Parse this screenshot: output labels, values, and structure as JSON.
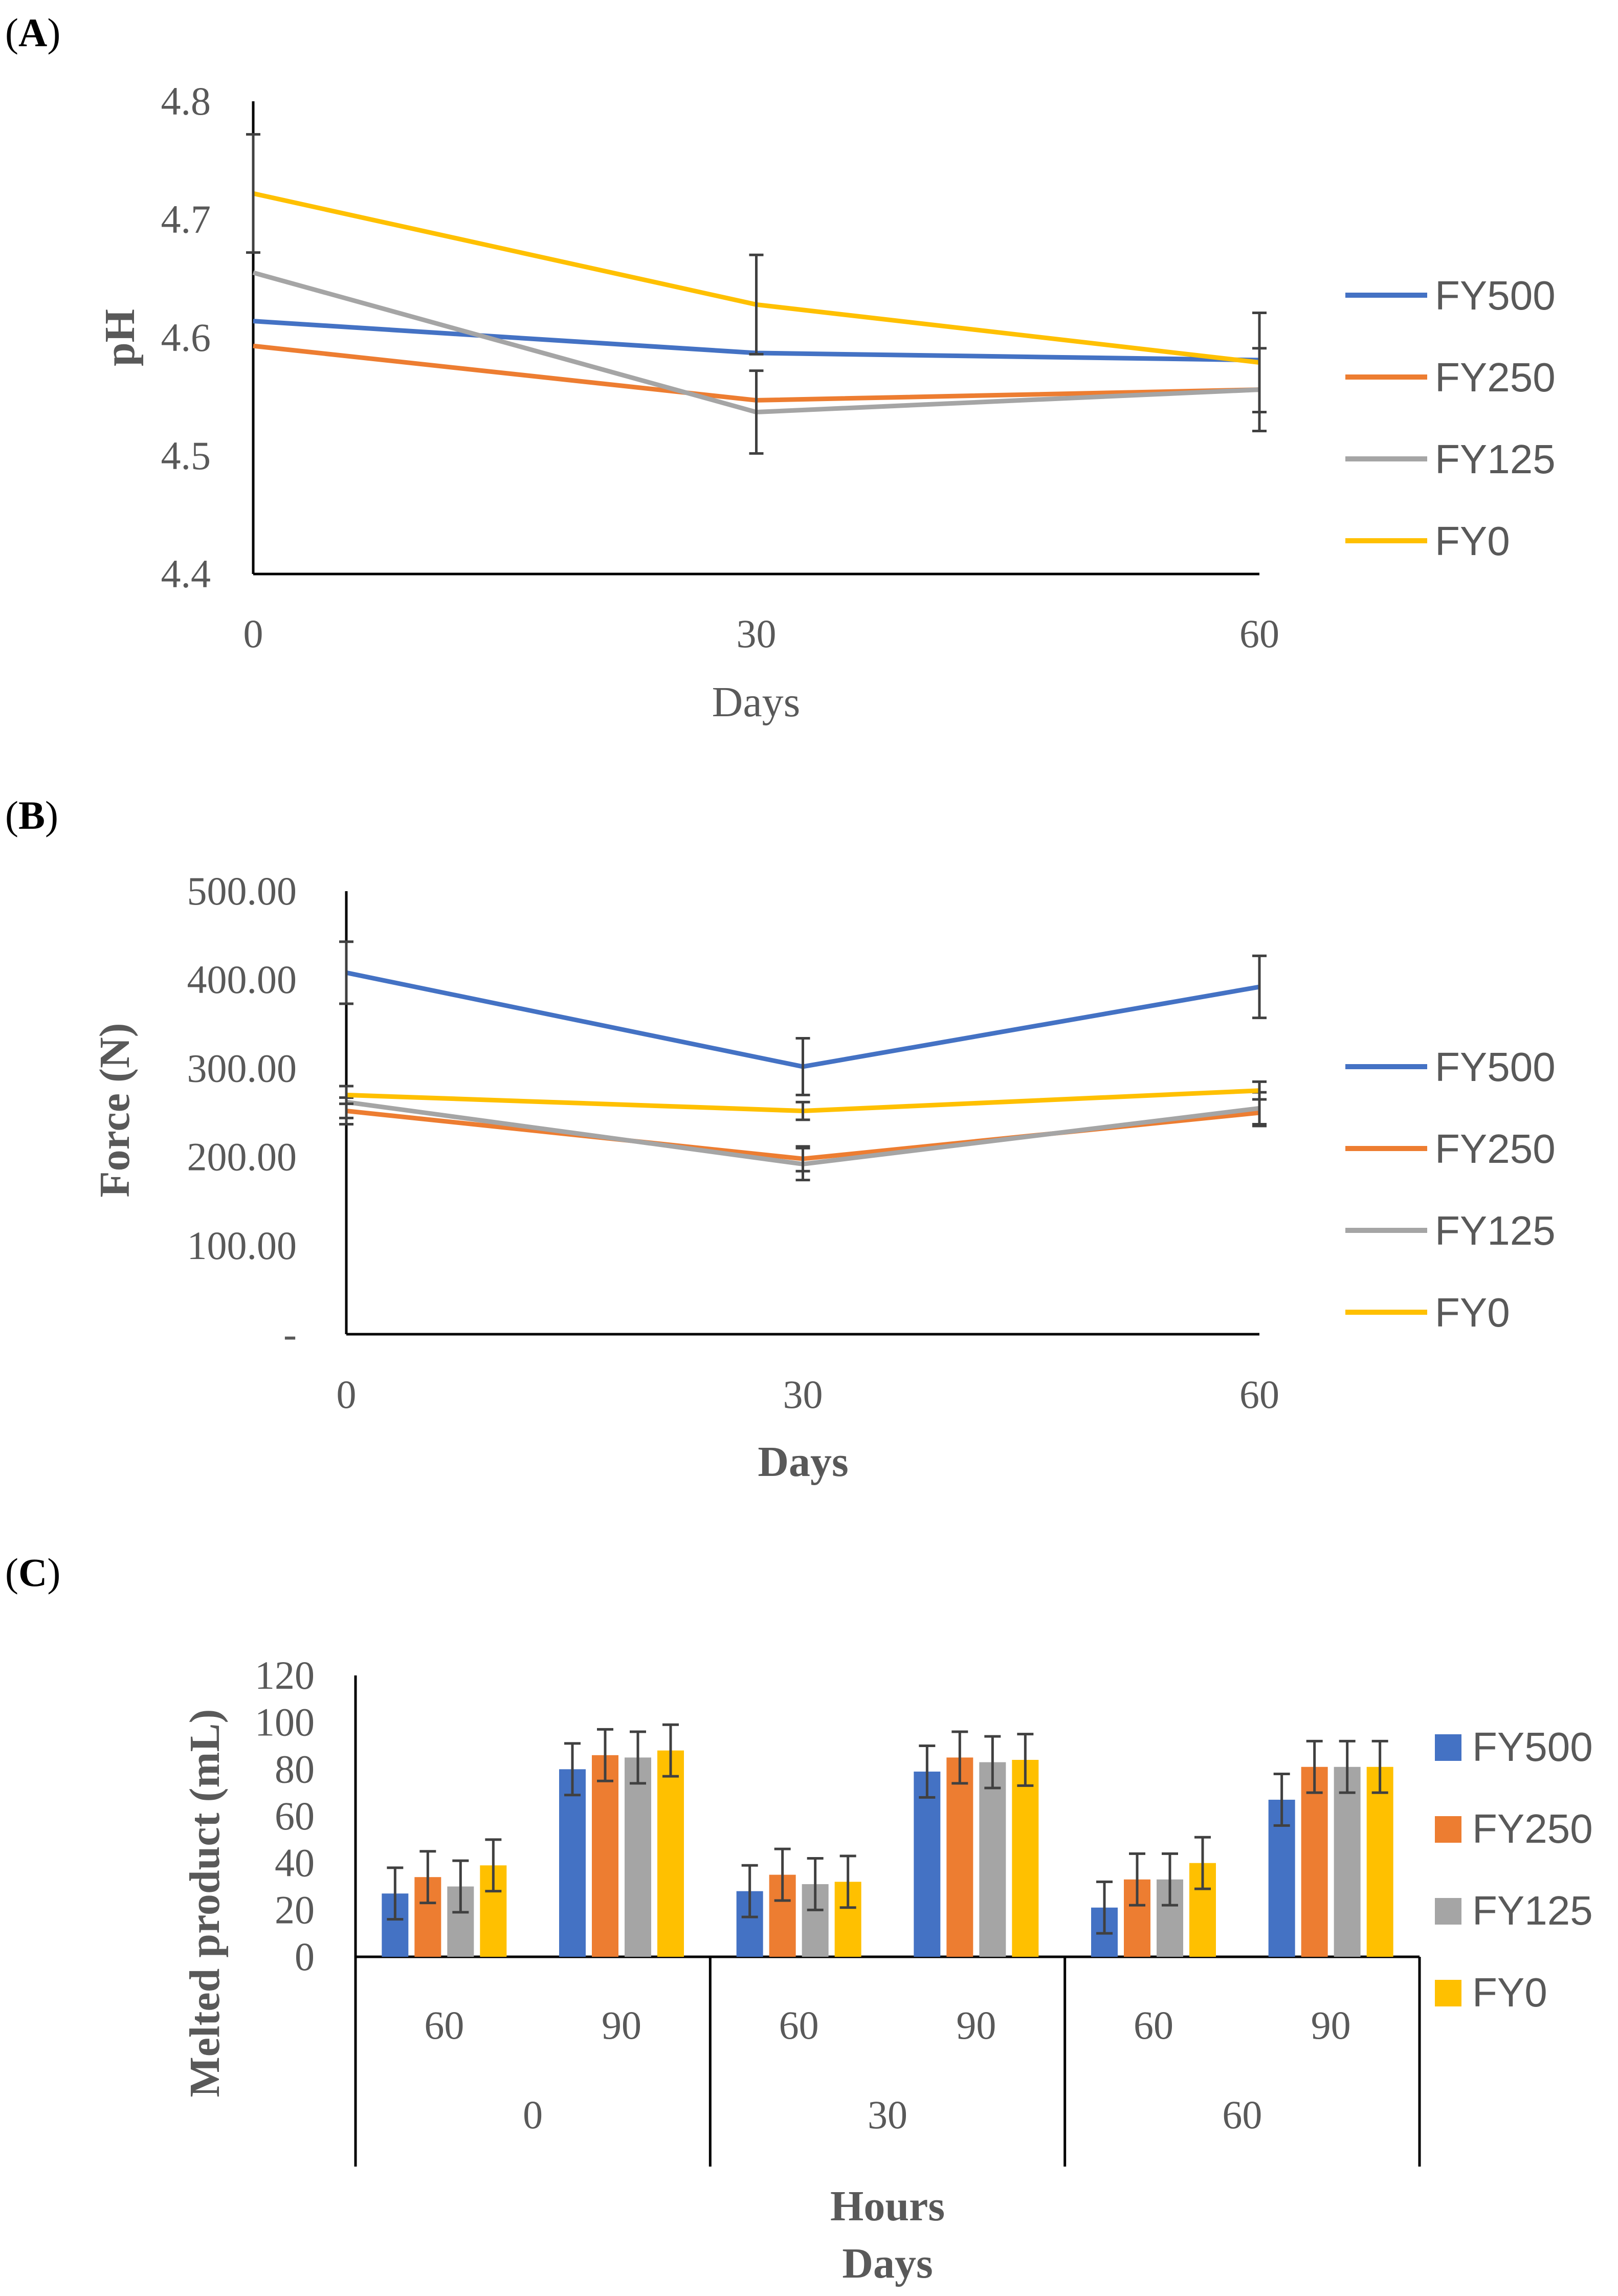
{
  "colors": {
    "FY500": "#4472C4",
    "FY250": "#ED7D31",
    "FY125": "#A5A5A5",
    "FY0": "#FFC000",
    "axis": "#000000",
    "errorbar": "#404040"
  },
  "chart_data": [
    {
      "panel": "(A)",
      "panel_letter": "A",
      "type": "line",
      "x": [
        0,
        30,
        60
      ],
      "x_ticks": [
        "0",
        "30",
        "60"
      ],
      "xlabel": "Days",
      "ylabel": "pH",
      "ylim": [
        4.4,
        4.8
      ],
      "y_ticks": [
        "4.4",
        "4.5",
        "4.6",
        "4.7",
        "4.8"
      ],
      "legend": "right",
      "series": [
        {
          "name": "FY500",
          "values": [
            4.614,
            4.587,
            4.581
          ],
          "errors": [
            0.0,
            0.0,
            0.0
          ]
        },
        {
          "name": "FY250",
          "values": [
            4.593,
            4.547,
            4.556
          ],
          "errors": [
            0.0,
            0.0,
            0.0
          ]
        },
        {
          "name": "FY125",
          "values": [
            4.655,
            4.537,
            4.556
          ],
          "errors": [
            0.0,
            0.035,
            0.035
          ]
        },
        {
          "name": "FY0",
          "values": [
            4.722,
            4.628,
            4.579
          ],
          "errors": [
            0.05,
            0.042,
            0.042
          ]
        }
      ]
    },
    {
      "panel": "(B)",
      "panel_letter": "B",
      "type": "line",
      "x": [
        0,
        30,
        60
      ],
      "x_ticks": [
        "0",
        "30",
        "60"
      ],
      "xlabel": "Days",
      "ylabel": "Force (N)",
      "ylim": [
        0,
        500
      ],
      "y_ticks": [
        "-",
        "100.00",
        "200.00",
        "300.00",
        "400.00",
        "500.00"
      ],
      "legend": "right",
      "series": [
        {
          "name": "FY500",
          "values": [
            408,
            302,
            392
          ],
          "errors": [
            35,
            32,
            35
          ]
        },
        {
          "name": "FY250",
          "values": [
            252,
            198,
            250
          ],
          "errors": [
            15,
            14,
            15
          ]
        },
        {
          "name": "FY125",
          "values": [
            262,
            192,
            255
          ],
          "errors": [
            18,
            18,
            18
          ]
        },
        {
          "name": "FY0",
          "values": [
            270,
            252,
            275
          ],
          "errors": [
            10,
            10,
            10
          ]
        }
      ]
    },
    {
      "panel": "(C)",
      "panel_letter": "C",
      "type": "bar",
      "groups": [
        "0",
        "30",
        "60"
      ],
      "categories": [
        "60",
        "90",
        "60",
        "90",
        "60",
        "90"
      ],
      "xlabel_inner": "Hours",
      "xlabel_outer": "Days",
      "ylabel": "Melted product (mL)",
      "ylim": [
        0,
        120
      ],
      "y_ticks": [
        "0",
        "20",
        "40",
        "60",
        "80",
        "100",
        "120"
      ],
      "legend": "right",
      "series": [
        {
          "name": "FY500",
          "values": [
            27,
            80,
            28,
            79,
            21,
            67
          ],
          "errors": [
            11,
            11,
            11,
            11,
            11,
            11
          ]
        },
        {
          "name": "FY250",
          "values": [
            34,
            86,
            35,
            85,
            33,
            81
          ],
          "errors": [
            11,
            11,
            11,
            11,
            11,
            11
          ]
        },
        {
          "name": "FY125",
          "values": [
            30,
            85,
            31,
            83,
            33,
            81
          ],
          "errors": [
            11,
            11,
            11,
            11,
            11,
            11
          ]
        },
        {
          "name": "FY0",
          "values": [
            39,
            88,
            32,
            84,
            40,
            81
          ],
          "errors": [
            11,
            11,
            11,
            11,
            11,
            11
          ]
        }
      ]
    }
  ]
}
